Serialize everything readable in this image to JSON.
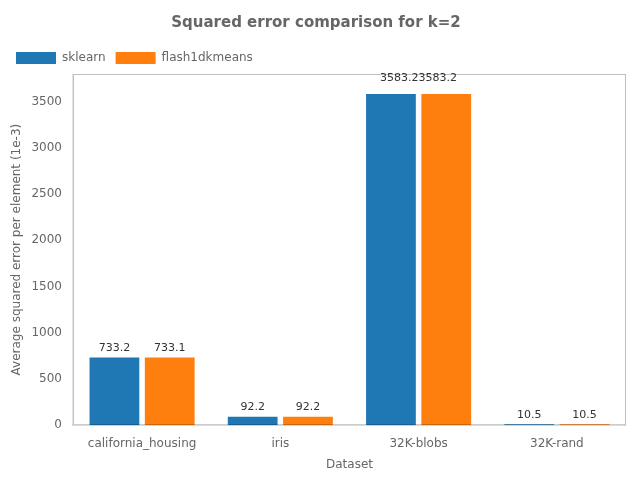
{
  "chart_data": {
    "type": "bar",
    "title": "Squared error comparison for k=2",
    "xlabel": "Dataset",
    "ylabel": "Average squared error per element (1e-3)",
    "categories": [
      "california_housing",
      "iris",
      "32K-blobs",
      "32K-rand"
    ],
    "series": [
      {
        "name": "sklearn",
        "color": "#1f77b4",
        "values": [
          733.2,
          92.2,
          3583.2,
          10.5
        ],
        "value_labels": [
          "733.2",
          "92.2",
          null,
          "10.5"
        ]
      },
      {
        "name": "flash1dkmeans",
        "color": "#ff7f0e",
        "values": [
          733.1,
          92.2,
          3583.2,
          10.5
        ],
        "value_labels": [
          "733.1",
          "92.2",
          null,
          "10.5"
        ]
      }
    ],
    "annotations": [
      {
        "text": "3583.23583.2",
        "x": "32K-blobs",
        "y": 3583.2
      }
    ],
    "data_labels": true,
    "ylim": [
      0,
      3800
    ],
    "yticks": [
      0,
      500,
      1000,
      1500,
      2000,
      2500,
      3000,
      3500
    ],
    "legend": "upper left",
    "grid": false
  }
}
